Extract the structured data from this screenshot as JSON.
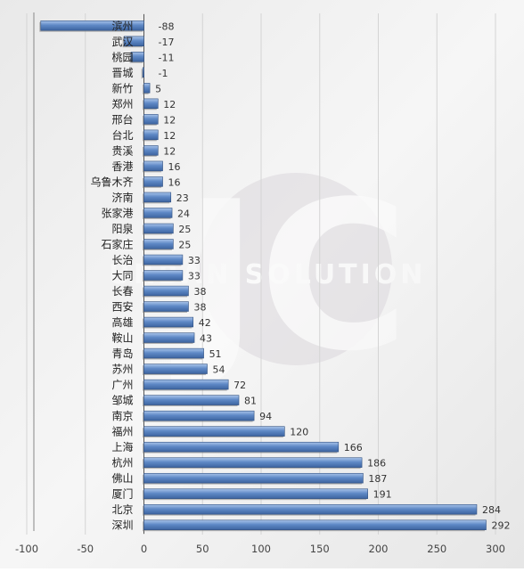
{
  "chart_data": {
    "type": "bar",
    "orientation": "horizontal",
    "title": "",
    "xlabel": "",
    "ylabel": "",
    "xlim": [
      -100,
      300
    ],
    "x_ticks": [
      -100,
      -50,
      0,
      50,
      100,
      150,
      200,
      250,
      300
    ],
    "grid": "vertical",
    "legend": "none",
    "bar_color": "#4f79b8",
    "bar_color_light": "#8fb0dd",
    "background_color": "#eeeeee",
    "categories": [
      "滨州",
      "武汉",
      "桃园",
      "晋城",
      "新竹",
      "郑州",
      "邢台",
      "台北",
      "贵溪",
      "香港",
      "乌鲁木齐",
      "济南",
      "张家港",
      "阳泉",
      "石家庄",
      "长治",
      "大同",
      "长春",
      "西安",
      "高雄",
      "鞍山",
      "青岛",
      "苏州",
      "广州",
      "邹城",
      "南京",
      "福州",
      "上海",
      "杭州",
      "佛山",
      "厦门",
      "北京",
      "深圳"
    ],
    "values": [
      -88,
      -17,
      -11,
      -1,
      5,
      12,
      12,
      12,
      12,
      16,
      16,
      23,
      24,
      25,
      25,
      33,
      33,
      38,
      38,
      42,
      43,
      51,
      54,
      72,
      81,
      94,
      120,
      166,
      186,
      187,
      191,
      284,
      292
    ],
    "watermark": {
      "text": "URBAN SOLUTION",
      "logo_letters": "JC"
    }
  }
}
